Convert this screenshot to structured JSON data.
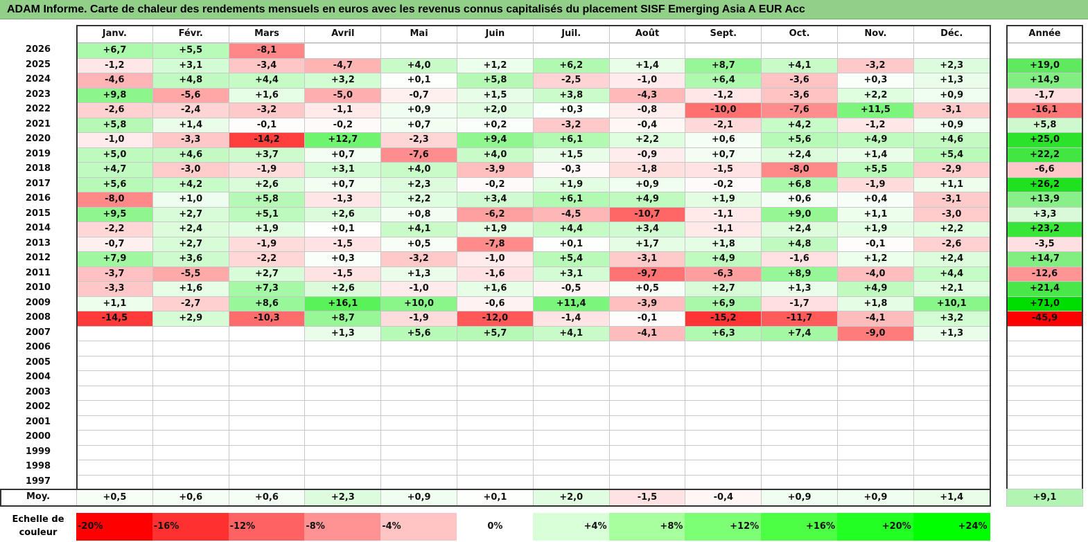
{
  "title": "ADAM Informe. Carte de chaleur des rendements mensuels en euros avec les revenus connus capitalisés du placement SISF Emerging Asia A EUR Acc",
  "chart_data": {
    "type": "heatmap",
    "title": "ADAM Informe. Carte de chaleur des rendements mensuels en euros avec les revenus connus capitalisés du placement SISF Emerging Asia A EUR Acc",
    "months": [
      "Janv.",
      "Févr.",
      "Mars",
      "Avril",
      "Mai",
      "Juin",
      "Juil.",
      "Août",
      "Sept.",
      "Oct.",
      "Nov.",
      "Déc."
    ],
    "year_header": "Année",
    "rows": [
      {
        "year": "2026",
        "values": [
          "+6,7",
          "+5,5",
          "-8,1",
          "",
          "",
          "",
          "",
          "",
          "",
          "",
          "",
          ""
        ],
        "annual": ""
      },
      {
        "year": "2025",
        "values": [
          "-1,2",
          "+3,1",
          "-3,4",
          "-4,7",
          "+4,0",
          "+1,2",
          "+6,2",
          "+1,4",
          "+8,7",
          "+4,1",
          "-3,2",
          "+2,3"
        ],
        "annual": "+19,0"
      },
      {
        "year": "2024",
        "values": [
          "-4,6",
          "+4,8",
          "+4,4",
          "+3,2",
          "+0,1",
          "+5,8",
          "-2,5",
          "-1,0",
          "+6,4",
          "-3,6",
          "+0,3",
          "+1,3"
        ],
        "annual": "+14,9"
      },
      {
        "year": "2023",
        "values": [
          "+9,8",
          "-5,6",
          "+1,6",
          "-5,0",
          "-0,7",
          "+1,5",
          "+3,8",
          "-4,3",
          "-1,2",
          "-3,6",
          "+2,2",
          "+0,9"
        ],
        "annual": "-1,7"
      },
      {
        "year": "2022",
        "values": [
          "-2,6",
          "-2,4",
          "-3,2",
          "-1,1",
          "+0,9",
          "+2,0",
          "+0,3",
          "-0,8",
          "-10,0",
          "-7,6",
          "+11,5",
          "-3,1"
        ],
        "annual": "-16,1"
      },
      {
        "year": "2021",
        "values": [
          "+5,8",
          "+1,4",
          "-0,1",
          "-0,2",
          "+0,7",
          "+0,2",
          "-3,2",
          "-0,4",
          "-2,1",
          "+4,2",
          "-1,2",
          "+0,9"
        ],
        "annual": "+5,8"
      },
      {
        "year": "2020",
        "values": [
          "-1,0",
          "-3,3",
          "-14,2",
          "+12,7",
          "-2,3",
          "+9,4",
          "+6,1",
          "+2,2",
          "+0,6",
          "+5,6",
          "+4,9",
          "+4,6"
        ],
        "annual": "+25,0"
      },
      {
        "year": "2019",
        "values": [
          "+5,0",
          "+4,6",
          "+3,7",
          "+0,7",
          "-7,6",
          "+4,0",
          "+1,5",
          "-0,9",
          "+0,7",
          "+2,4",
          "+1,4",
          "+5,4"
        ],
        "annual": "+22,2"
      },
      {
        "year": "2018",
        "values": [
          "+4,7",
          "-3,0",
          "-1,9",
          "+3,1",
          "+4,0",
          "-3,9",
          "-0,3",
          "-1,8",
          "-1,5",
          "-8,0",
          "+5,5",
          "-2,9"
        ],
        "annual": "-6,6"
      },
      {
        "year": "2017",
        "values": [
          "+5,6",
          "+4,2",
          "+2,6",
          "+0,7",
          "+2,3",
          "-0,2",
          "+1,9",
          "+0,9",
          "-0,2",
          "+6,8",
          "-1,9",
          "+1,1"
        ],
        "annual": "+26,2"
      },
      {
        "year": "2016",
        "values": [
          "-8,0",
          "+1,0",
          "+5,8",
          "-1,3",
          "+2,2",
          "+3,4",
          "+6,1",
          "+4,9",
          "+1,9",
          "+0,6",
          "+0,4",
          "-3,1"
        ],
        "annual": "+13,9"
      },
      {
        "year": "2015",
        "values": [
          "+9,5",
          "+2,7",
          "+5,1",
          "+2,6",
          "+0,8",
          "-6,2",
          "-4,5",
          "-10,7",
          "-1,1",
          "+9,0",
          "+1,1",
          "-3,0"
        ],
        "annual": "+3,3"
      },
      {
        "year": "2014",
        "values": [
          "-2,2",
          "+2,4",
          "+1,9",
          "+0,1",
          "+4,1",
          "+1,9",
          "+4,4",
          "+3,4",
          "-1,1",
          "+2,4",
          "+1,9",
          "+2,2"
        ],
        "annual": "+23,2"
      },
      {
        "year": "2013",
        "values": [
          "-0,7",
          "+2,7",
          "-1,9",
          "-1,5",
          "+0,5",
          "-7,8",
          "+0,1",
          "+1,7",
          "+1,8",
          "+4,8",
          "-0,1",
          "-2,6"
        ],
        "annual": "-3,5"
      },
      {
        "year": "2012",
        "values": [
          "+7,9",
          "+3,6",
          "-2,2",
          "+0,3",
          "-3,2",
          "-1,0",
          "+5,4",
          "-3,1",
          "+4,9",
          "-1,6",
          "+1,2",
          "+2,4"
        ],
        "annual": "+14,7"
      },
      {
        "year": "2011",
        "values": [
          "-3,7",
          "-5,5",
          "+2,7",
          "-1,5",
          "+1,3",
          "-1,6",
          "+3,1",
          "-9,7",
          "-6,3",
          "+8,9",
          "-4,0",
          "+4,4"
        ],
        "annual": "-12,6"
      },
      {
        "year": "2010",
        "values": [
          "-3,3",
          "+1,6",
          "+7,3",
          "+2,6",
          "-1,0",
          "+1,6",
          "-0,5",
          "+0,5",
          "+2,7",
          "+1,3",
          "+4,9",
          "+2,1"
        ],
        "annual": "+21,4"
      },
      {
        "year": "2009",
        "values": [
          "+1,1",
          "-2,7",
          "+8,6",
          "+16,1",
          "+10,0",
          "-0,6",
          "+11,4",
          "-3,9",
          "+6,9",
          "-1,7",
          "+1,8",
          "+10,1"
        ],
        "annual": "+71,0"
      },
      {
        "year": "2008",
        "values": [
          "-14,5",
          "+2,9",
          "-10,3",
          "+8,7",
          "-1,9",
          "-12,0",
          "-1,4",
          "-0,1",
          "-15,2",
          "-11,7",
          "-4,1",
          "+3,2"
        ],
        "annual": "-45,9"
      },
      {
        "year": "2007",
        "values": [
          "",
          "",
          "",
          "+1,3",
          "+5,6",
          "+5,7",
          "+4,1",
          "-4,1",
          "+6,3",
          "+7,4",
          "-9,0",
          "+1,3"
        ],
        "annual": ""
      },
      {
        "year": "2006",
        "values": [
          "",
          "",
          "",
          "",
          "",
          "",
          "",
          "",
          "",
          "",
          "",
          ""
        ],
        "annual": ""
      },
      {
        "year": "2005",
        "values": [
          "",
          "",
          "",
          "",
          "",
          "",
          "",
          "",
          "",
          "",
          "",
          ""
        ],
        "annual": ""
      },
      {
        "year": "2004",
        "values": [
          "",
          "",
          "",
          "",
          "",
          "",
          "",
          "",
          "",
          "",
          "",
          ""
        ],
        "annual": ""
      },
      {
        "year": "2003",
        "values": [
          "",
          "",
          "",
          "",
          "",
          "",
          "",
          "",
          "",
          "",
          "",
          ""
        ],
        "annual": ""
      },
      {
        "year": "2002",
        "values": [
          "",
          "",
          "",
          "",
          "",
          "",
          "",
          "",
          "",
          "",
          "",
          ""
        ],
        "annual": ""
      },
      {
        "year": "2001",
        "values": [
          "",
          "",
          "",
          "",
          "",
          "",
          "",
          "",
          "",
          "",
          "",
          ""
        ],
        "annual": ""
      },
      {
        "year": "2000",
        "values": [
          "",
          "",
          "",
          "",
          "",
          "",
          "",
          "",
          "",
          "",
          "",
          ""
        ],
        "annual": ""
      },
      {
        "year": "1999",
        "values": [
          "",
          "",
          "",
          "",
          "",
          "",
          "",
          "",
          "",
          "",
          "",
          ""
        ],
        "annual": ""
      },
      {
        "year": "1998",
        "values": [
          "",
          "",
          "",
          "",
          "",
          "",
          "",
          "",
          "",
          "",
          "",
          ""
        ],
        "annual": ""
      },
      {
        "year": "1997",
        "values": [
          "",
          "",
          "",
          "",
          "",
          "",
          "",
          "",
          "",
          "",
          "",
          ""
        ],
        "annual": ""
      }
    ],
    "average": {
      "label": "Moy.",
      "values": [
        "+0,5",
        "+0,6",
        "+0,6",
        "+2,3",
        "+0,9",
        "+0,1",
        "+2,0",
        "-1,5",
        "-0,4",
        "+0,9",
        "+0,9",
        "+1,4"
      ],
      "annual": "+9,1"
    },
    "color_scale": {
      "label": "Echelle de couleur",
      "stops": [
        "-20%",
        "-16%",
        "-12%",
        "-8%",
        "-4%",
        "0%",
        "+4%",
        "+8%",
        "+12%",
        "+16%",
        "+20%",
        "+24%"
      ],
      "negative_color": "#ff0000",
      "positive_color": "#00ff00",
      "neutral_color": "#ffffff"
    }
  }
}
